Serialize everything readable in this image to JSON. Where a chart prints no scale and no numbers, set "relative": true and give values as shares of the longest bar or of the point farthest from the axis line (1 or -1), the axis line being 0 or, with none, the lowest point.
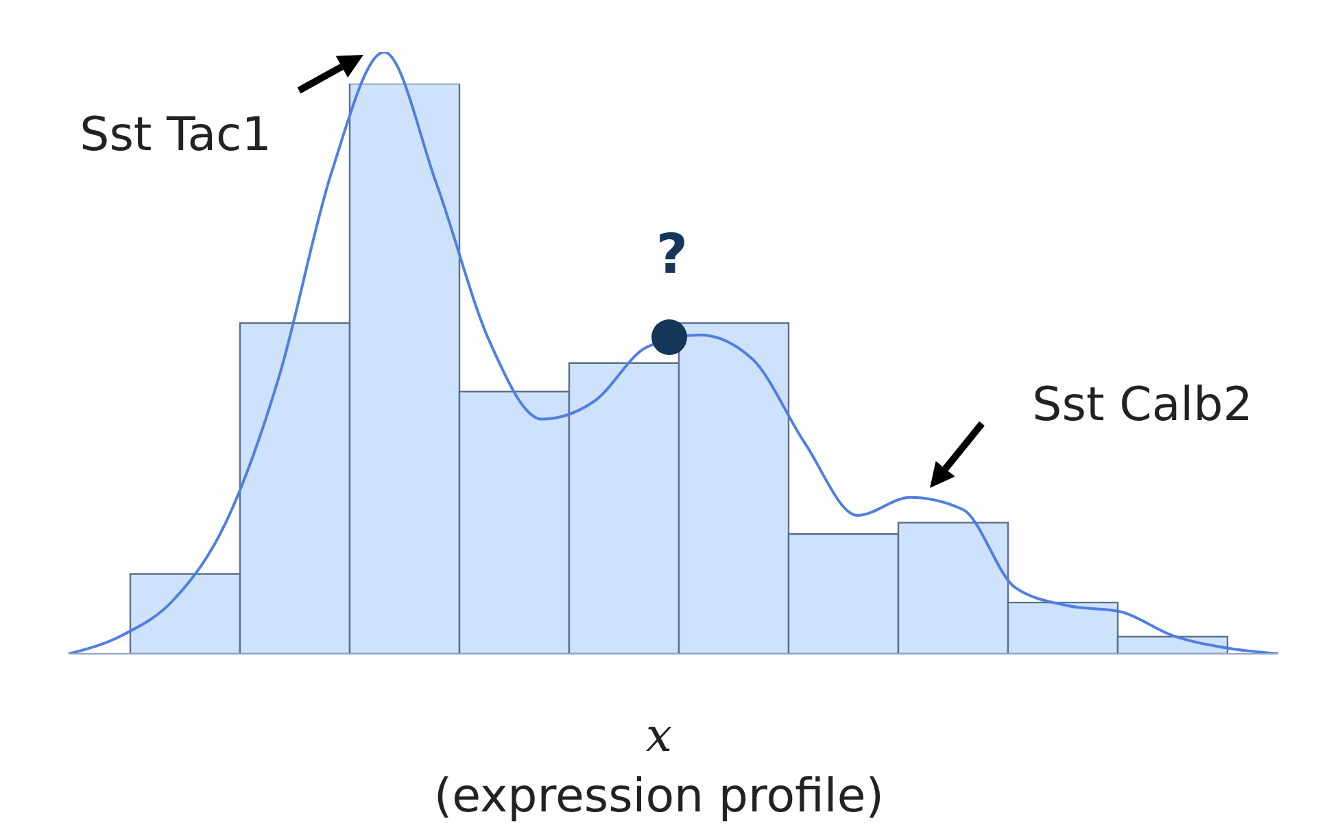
{
  "chart_data": [
    {
      "type": "bar",
      "relative": true,
      "categories": [
        null,
        null,
        null,
        null,
        null,
        null,
        null,
        null,
        null,
        null
      ],
      "values": [
        0.14,
        0.58,
        1,
        0.46,
        0.51,
        0.58,
        0.21,
        0.23,
        0.09,
        0.03
      ],
      "color": "#cfe2fb",
      "xlabel": "x\n(expression profile)"
    },
    {
      "type": "line",
      "relative": true,
      "categories": [
        null,
        null,
        null,
        null,
        null,
        null,
        null,
        null,
        null,
        null,
        null,
        null,
        null,
        null,
        null,
        null,
        null,
        null,
        null,
        null,
        null,
        null,
        null,
        null
      ],
      "values": [
        0,
        0.03,
        0.09,
        0.22,
        0.46,
        0.8,
        1,
        0.78,
        0.52,
        0.39,
        0.42,
        0.51,
        0.53,
        0.49,
        0.35,
        0.23,
        0.26,
        0.24,
        0.11,
        0.08,
        0.07,
        0.03,
        0.01,
        0
      ],
      "color": "#4f7fe0",
      "annotations": [
        "Sst Tac1",
        "?",
        "Sst Calb2"
      ]
    }
  ]
}
